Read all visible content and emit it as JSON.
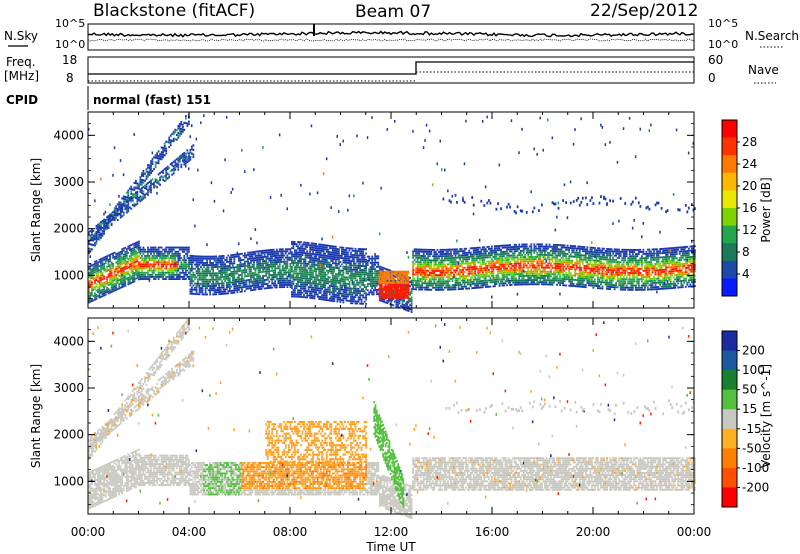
{
  "header": {
    "station": "Blackstone (fitACF)",
    "beam": "Beam 07",
    "date": "22/Sep/2012"
  },
  "top_panel": {
    "left_label": "N.Sky",
    "right_label": "N.Search",
    "left_ticks": [
      "10^5",
      "10^0"
    ],
    "right_ticks": [
      "10^5",
      "10^0"
    ]
  },
  "freq_panel": {
    "left_label_1": "Freq.",
    "left_label_2": "[MHz]",
    "left_ticks": [
      "18",
      "8"
    ],
    "right_label": "Nave",
    "right_ticks": [
      "60",
      "0"
    ]
  },
  "cpid": {
    "label": "CPID",
    "mode": "normal (fast) 151"
  },
  "power_colorbar": {
    "label": "Power [dB]",
    "ticks": [
      "28",
      "24",
      "20",
      "16",
      "12",
      "8",
      "4"
    ],
    "colors": [
      "#ff0000",
      "#ff3300",
      "#ff7a00",
      "#ffb800",
      "#e8e800",
      "#7fd400",
      "#22a650",
      "#1c7a5a",
      "#1c4aa8",
      "#0a1aff"
    ]
  },
  "velocity_colorbar": {
    "label": "Velocity [m s^-1]",
    "ticks": [
      "200",
      "100",
      "50",
      "15",
      "-15",
      "-50",
      "-100",
      "-200"
    ],
    "colors": [
      "#1c2aa0",
      "#1a5aa0",
      "#1a8030",
      "#55c040",
      "#c8c8c0",
      "#ffb020",
      "#ff8000",
      "#ff5000",
      "#ff0000"
    ]
  },
  "x_axis": {
    "label": "Time UT",
    "ticks": [
      "00:00",
      "04:00",
      "08:00",
      "12:00",
      "16:00",
      "20:00",
      "00:00"
    ]
  },
  "chart_data": [
    {
      "type": "heatmap",
      "title": "Power",
      "xlabel": "Time UT",
      "ylabel": "Slant Range [km]",
      "xlim": [
        0,
        24
      ],
      "ylim": [
        300,
        4500
      ],
      "y_ticks": [
        1000,
        2000,
        3000,
        4000
      ],
      "color_scale": "Power [dB]",
      "color_range": [
        0,
        30
      ],
      "features": [
        {
          "name": "main ground-scatter band",
          "time_start": 0,
          "time_end": 24,
          "range_km_approx": [
            800,
            1600
          ]
        },
        {
          "name": "strong echo patch",
          "time_start": 11.5,
          "time_end": 12.7,
          "range_km_approx": [
            500,
            1000
          ]
        },
        {
          "name": "diagonal streak",
          "time_start": 0,
          "time_end": 4,
          "range_km_approx": [
            1500,
            4400
          ]
        },
        {
          "name": "high-range scatter",
          "time_start": 14,
          "time_end": 24,
          "range_km_approx": [
            2400,
            3500
          ]
        }
      ]
    },
    {
      "type": "heatmap",
      "title": "Velocity",
      "xlabel": "Time UT",
      "ylabel": "Slant Range [km]",
      "xlim": [
        0,
        24
      ],
      "ylim": [
        300,
        4500
      ],
      "y_ticks": [
        1000,
        2000,
        3000,
        4000
      ],
      "color_scale": "Velocity [m s^-1]",
      "color_range": [
        -200,
        200
      ],
      "features": [
        {
          "name": "ground scatter (low velocity)",
          "time_start": 0,
          "time_end": 24,
          "range_km_approx": [
            800,
            1400
          ]
        },
        {
          "name": "negative velocity region",
          "time_start": 6,
          "time_end": 11,
          "range_km_approx": [
            800,
            2200
          ]
        },
        {
          "name": "positive velocity streak",
          "time_start": 11.3,
          "time_end": 12.5,
          "range_km_approx": [
            800,
            2600
          ]
        }
      ]
    }
  ]
}
